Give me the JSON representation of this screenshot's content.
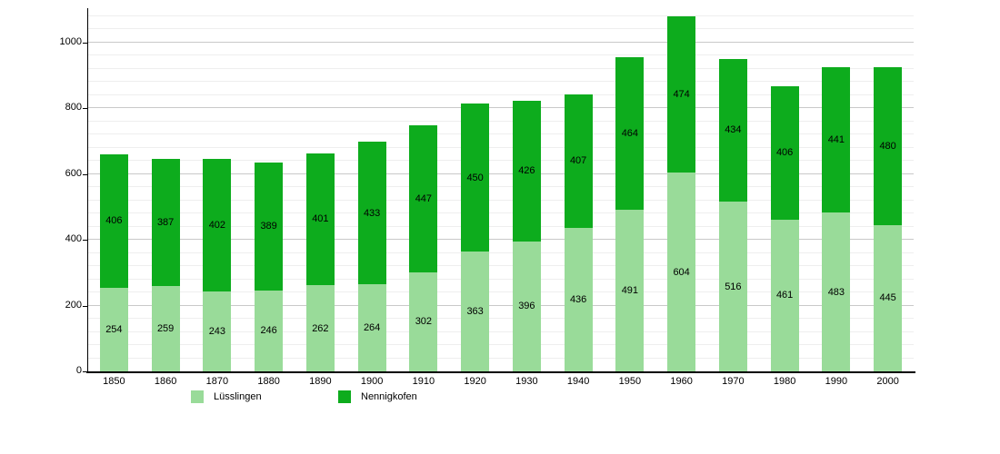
{
  "chart_data": {
    "type": "bar",
    "stacked": true,
    "title": "",
    "xlabel": "",
    "ylabel": "",
    "grid": true,
    "legend_position": "bottom",
    "categories": [
      "1850",
      "1860",
      "1870",
      "1880",
      "1890",
      "1900",
      "1910",
      "1920",
      "1930",
      "1940",
      "1950",
      "1960",
      "1970",
      "1980",
      "1990",
      "2000"
    ],
    "series": [
      {
        "name": "Lüsslingen",
        "color": "#99db99",
        "values": [
          254,
          259,
          243,
          246,
          262,
          264,
          302,
          363,
          396,
          436,
          491,
          604,
          516,
          461,
          483,
          445
        ]
      },
      {
        "name": "Nennigkofen",
        "color": "#0dac1d",
        "values": [
          406,
          387,
          402,
          389,
          401,
          433,
          447,
          450,
          426,
          407,
          464,
          474,
          434,
          406,
          441,
          480
        ]
      }
    ],
    "totals": [
      660,
      646,
      645,
      635,
      663,
      697,
      749,
      813,
      822,
      843,
      955,
      1078,
      950,
      867,
      924,
      925
    ],
    "ylim": [
      0,
      1104
    ],
    "y_ticks": [
      0,
      200,
      400,
      600,
      800,
      1000
    ],
    "y_minor_step": 40
  },
  "legend": {
    "items": [
      {
        "label": "Lüsslingen",
        "color": "#99db99"
      },
      {
        "label": "Nennigkofen",
        "color": "#0dac1d"
      }
    ]
  },
  "colors": {
    "background": "#ffffff",
    "axis": "#000000",
    "gridline_minor": "#eeeeee",
    "gridline_major": "#c9c9c9",
    "label_text": "#000000"
  }
}
